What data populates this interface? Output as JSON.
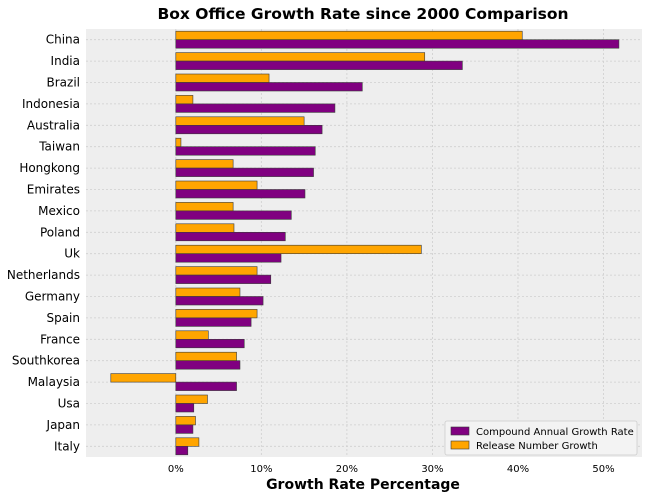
{
  "chart_data": {
    "type": "bar",
    "orientation": "horizontal",
    "title": "Box Office Growth Rate since 2000 Comparison",
    "xlabel": "Growth Rate Percentage",
    "ylabel": "",
    "xlim": [
      -10.5,
      54.5
    ],
    "xticks": [
      0,
      10,
      20,
      30,
      40,
      50
    ],
    "xtick_labels": [
      "0%",
      "10%",
      "20%",
      "30%",
      "40%",
      "50%"
    ],
    "grid": true,
    "legend_position": "lower-right",
    "categories": [
      "China",
      "India",
      "Brazil",
      "Indonesia",
      "Australia",
      "Taiwan",
      "Hongkong",
      "Emirates",
      "Mexico",
      "Poland",
      "Uk",
      "Netherlands",
      "Germany",
      "Spain",
      "France",
      "Southkorea",
      "Malaysia",
      "Usa",
      "Japan",
      "Italy"
    ],
    "series": [
      {
        "name": "Compound Annual Growth Rate",
        "color": "#800080",
        "values": [
          51.8,
          33.5,
          21.8,
          18.6,
          17.1,
          16.3,
          16.1,
          15.1,
          13.5,
          12.8,
          12.3,
          11.1,
          10.2,
          8.8,
          8.0,
          7.5,
          7.1,
          2.1,
          2.0,
          1.4
        ]
      },
      {
        "name": "Release Number Growth",
        "color": "#FFA500",
        "values": [
          40.5,
          29.1,
          10.9,
          2.0,
          15.0,
          0.6,
          6.7,
          9.5,
          6.7,
          6.8,
          28.7,
          9.5,
          7.5,
          9.5,
          3.8,
          7.1,
          -7.6,
          3.7,
          2.3,
          2.7
        ]
      }
    ]
  }
}
